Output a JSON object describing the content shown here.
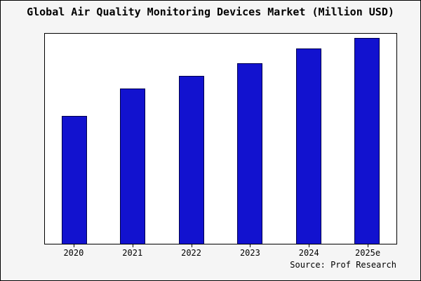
{
  "title": "Global Air Quality Monitoring Devices Market (Million USD)",
  "source": "Source: Prof Research",
  "colors": {
    "background": "#f5f5f5",
    "plot_background": "#ffffff",
    "bar": "#1212cf",
    "bar_border": "#00004d",
    "axis": "#000000"
  },
  "chart_data": {
    "type": "bar",
    "title": "Global Air Quality Monitoring Devices Market (Million USD)",
    "categories": [
      "2020",
      "2021",
      "2022",
      "2023",
      "2024",
      "2025e"
    ],
    "values": [
      61,
      74,
      80,
      86,
      93,
      98
    ],
    "xlabel": "",
    "ylabel": "",
    "ylim": [
      0,
      100
    ],
    "y_axis_tick_labels_visible": false,
    "grid": false,
    "legend": false
  }
}
